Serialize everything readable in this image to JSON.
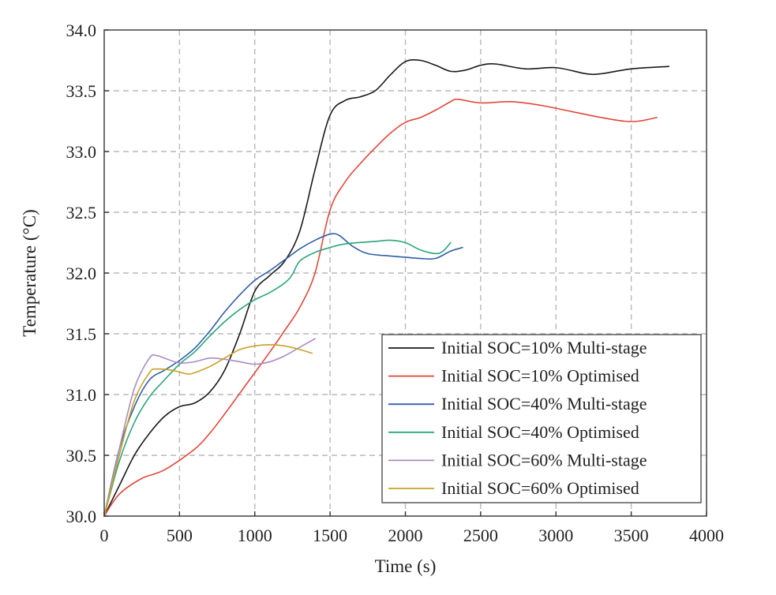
{
  "chart_data": {
    "type": "line",
    "title": "",
    "xlabel": "Time (s)",
    "ylabel": "Temperature (°C)",
    "xlim": [
      0,
      4000
    ],
    "ylim": [
      30.0,
      34.0
    ],
    "xticks": [
      0,
      500,
      1000,
      1500,
      2000,
      2500,
      3000,
      3500,
      4000
    ],
    "xtick_labels": [
      "0",
      "500",
      "1000",
      "1500",
      "2000",
      "2500",
      "3000",
      "3500",
      "4000"
    ],
    "yticks": [
      30.0,
      30.5,
      31.0,
      31.5,
      32.0,
      32.5,
      33.0,
      33.5,
      34.0
    ],
    "ytick_labels": [
      "30.0",
      "30.5",
      "31.0",
      "31.5",
      "32.0",
      "32.5",
      "33.0",
      "33.5",
      "34.0"
    ],
    "grid": true,
    "legend_position": "bottom-right",
    "series": [
      {
        "name": "Initial SOC=10% Multi-stage",
        "color": "#1a1a1a",
        "points": [
          [
            0,
            30.0
          ],
          [
            100,
            30.25
          ],
          [
            200,
            30.5
          ],
          [
            300,
            30.68
          ],
          [
            400,
            30.82
          ],
          [
            500,
            30.9
          ],
          [
            600,
            30.93
          ],
          [
            700,
            31.02
          ],
          [
            800,
            31.2
          ],
          [
            900,
            31.5
          ],
          [
            1000,
            31.85
          ],
          [
            1100,
            31.98
          ],
          [
            1200,
            32.1
          ],
          [
            1300,
            32.35
          ],
          [
            1400,
            32.85
          ],
          [
            1500,
            33.3
          ],
          [
            1600,
            33.42
          ],
          [
            1700,
            33.45
          ],
          [
            1800,
            33.5
          ],
          [
            1900,
            33.63
          ],
          [
            2000,
            33.74
          ],
          [
            2100,
            33.75
          ],
          [
            2200,
            33.71
          ],
          [
            2300,
            33.66
          ],
          [
            2400,
            33.67
          ],
          [
            2500,
            33.71
          ],
          [
            2600,
            33.72
          ],
          [
            2800,
            33.68
          ],
          [
            3000,
            33.69
          ],
          [
            3200,
            33.64
          ],
          [
            3300,
            33.64
          ],
          [
            3500,
            33.68
          ],
          [
            3750,
            33.7
          ]
        ]
      },
      {
        "name": "Initial SOC=10% Optimised",
        "color": "#e0483a",
        "points": [
          [
            0,
            30.0
          ],
          [
            100,
            30.18
          ],
          [
            250,
            30.31
          ],
          [
            400,
            30.38
          ],
          [
            600,
            30.55
          ],
          [
            700,
            30.68
          ],
          [
            800,
            30.84
          ],
          [
            900,
            31.01
          ],
          [
            1000,
            31.18
          ],
          [
            1100,
            31.35
          ],
          [
            1200,
            31.53
          ],
          [
            1300,
            31.72
          ],
          [
            1400,
            32.0
          ],
          [
            1500,
            32.52
          ],
          [
            1600,
            32.75
          ],
          [
            1700,
            32.9
          ],
          [
            1800,
            33.03
          ],
          [
            1900,
            33.15
          ],
          [
            2000,
            33.24
          ],
          [
            2100,
            33.28
          ],
          [
            2200,
            33.34
          ],
          [
            2300,
            33.41
          ],
          [
            2350,
            33.43
          ],
          [
            2500,
            33.4
          ],
          [
            2700,
            33.41
          ],
          [
            2900,
            33.38
          ],
          [
            3100,
            33.33
          ],
          [
            3300,
            33.28
          ],
          [
            3450,
            33.25
          ],
          [
            3550,
            33.25
          ],
          [
            3670,
            33.28
          ]
        ]
      },
      {
        "name": "Initial SOC=40% Multi-stage",
        "color": "#2f5fa8",
        "points": [
          [
            0,
            30.0
          ],
          [
            100,
            30.55
          ],
          [
            200,
            30.9
          ],
          [
            300,
            31.12
          ],
          [
            400,
            31.2
          ],
          [
            500,
            31.28
          ],
          [
            600,
            31.38
          ],
          [
            700,
            31.52
          ],
          [
            800,
            31.68
          ],
          [
            900,
            31.82
          ],
          [
            1000,
            31.94
          ],
          [
            1100,
            32.02
          ],
          [
            1200,
            32.11
          ],
          [
            1300,
            32.2
          ],
          [
            1400,
            32.27
          ],
          [
            1500,
            32.32
          ],
          [
            1560,
            32.31
          ],
          [
            1650,
            32.22
          ],
          [
            1750,
            32.16
          ],
          [
            1900,
            32.14
          ],
          [
            2000,
            32.13
          ],
          [
            2100,
            32.12
          ],
          [
            2200,
            32.12
          ],
          [
            2300,
            32.18
          ],
          [
            2380,
            32.21
          ]
        ]
      },
      {
        "name": "Initial SOC=40% Optimised",
        "color": "#2aa678",
        "points": [
          [
            0,
            30.0
          ],
          [
            100,
            30.45
          ],
          [
            200,
            30.77
          ],
          [
            300,
            30.98
          ],
          [
            400,
            31.12
          ],
          [
            500,
            31.25
          ],
          [
            600,
            31.35
          ],
          [
            700,
            31.48
          ],
          [
            800,
            31.6
          ],
          [
            900,
            31.7
          ],
          [
            1000,
            31.78
          ],
          [
            1100,
            31.84
          ],
          [
            1200,
            31.92
          ],
          [
            1250,
            31.99
          ],
          [
            1300,
            32.1
          ],
          [
            1400,
            32.17
          ],
          [
            1500,
            32.21
          ],
          [
            1600,
            32.24
          ],
          [
            1800,
            32.26
          ],
          [
            1900,
            32.27
          ],
          [
            2000,
            32.25
          ],
          [
            2100,
            32.19
          ],
          [
            2200,
            32.16
          ],
          [
            2250,
            32.18
          ],
          [
            2300,
            32.25
          ]
        ]
      },
      {
        "name": "Initial SOC=60% Multi-stage",
        "color": "#a98bc6",
        "points": [
          [
            0,
            30.0
          ],
          [
            100,
            30.55
          ],
          [
            200,
            31.05
          ],
          [
            300,
            31.3
          ],
          [
            350,
            31.32
          ],
          [
            400,
            31.3
          ],
          [
            500,
            31.26
          ],
          [
            600,
            31.27
          ],
          [
            700,
            31.3
          ],
          [
            800,
            31.29
          ],
          [
            900,
            31.27
          ],
          [
            1000,
            31.25
          ],
          [
            1100,
            31.27
          ],
          [
            1200,
            31.32
          ],
          [
            1300,
            31.39
          ],
          [
            1400,
            31.46
          ]
        ]
      },
      {
        "name": "Initial SOC=60% Optimised",
        "color": "#c9a227",
        "points": [
          [
            0,
            30.0
          ],
          [
            100,
            30.5
          ],
          [
            200,
            30.95
          ],
          [
            300,
            31.18
          ],
          [
            350,
            31.21
          ],
          [
            450,
            31.2
          ],
          [
            550,
            31.17
          ],
          [
            600,
            31.18
          ],
          [
            700,
            31.23
          ],
          [
            800,
            31.3
          ],
          [
            900,
            31.37
          ],
          [
            1000,
            31.4
          ],
          [
            1100,
            31.41
          ],
          [
            1200,
            31.4
          ],
          [
            1300,
            31.37
          ],
          [
            1380,
            31.34
          ]
        ]
      }
    ]
  }
}
